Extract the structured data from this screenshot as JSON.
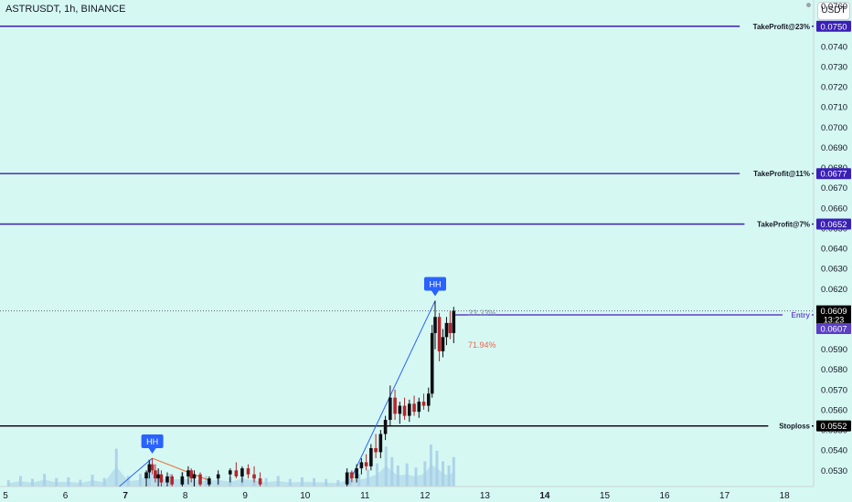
{
  "header": {
    "symbol": "ASTRUSDT, 1h, BINANCE",
    "currency": "USDT"
  },
  "chart_data": {
    "type": "candlestick",
    "symbol": "ASTRUSDT",
    "timeframe": "1h",
    "exchange": "BINANCE",
    "ylim": [
      0.0522,
      0.0763
    ],
    "y_ticks": [
      "0.0760",
      "0.0750",
      "0.0740",
      "0.0730",
      "0.0720",
      "0.0710",
      "0.0700",
      "0.0690",
      "0.0680",
      "0.0670",
      "0.0660",
      "0.0650",
      "0.0640",
      "0.0630",
      "0.0620",
      "0.0610",
      "0.0600",
      "0.0590",
      "0.0580",
      "0.0570",
      "0.0560",
      "0.0550",
      "0.0540",
      "0.0530"
    ],
    "x_ticks": [
      {
        "label": "5",
        "t": 5,
        "bold": false
      },
      {
        "label": "6",
        "t": 6,
        "bold": false
      },
      {
        "label": "7",
        "t": 7,
        "bold": true
      },
      {
        "label": "8",
        "t": 8,
        "bold": false
      },
      {
        "label": "9",
        "t": 9,
        "bold": false
      },
      {
        "label": "10",
        "t": 10,
        "bold": false
      },
      {
        "label": "11",
        "t": 11,
        "bold": false
      },
      {
        "label": "12",
        "t": 12,
        "bold": false
      },
      {
        "label": "13",
        "t": 13,
        "bold": false
      },
      {
        "label": "14",
        "t": 14,
        "bold": true
      },
      {
        "label": "15",
        "t": 15,
        "bold": false
      },
      {
        "label": "16",
        "t": 16,
        "bold": false
      },
      {
        "label": "17",
        "t": 17,
        "bold": false
      },
      {
        "label": "18",
        "t": 18,
        "bold": false
      }
    ],
    "levels": [
      {
        "name": "TakeProfit@23%",
        "price": 0.075,
        "label": "0.0750",
        "color": "#3a1fb6"
      },
      {
        "name": "TakeProfit@11%",
        "price": 0.0677,
        "label": "0.0677",
        "color": "#3a1fb6"
      },
      {
        "name": "TakeProfit@7%",
        "price": 0.0652,
        "label": "0.0652",
        "color": "#3a1fb6"
      },
      {
        "name": "Entry",
        "price": 0.0607,
        "label": "0.0607",
        "color": "#5b3fc6"
      },
      {
        "name": "Stoploss",
        "price": 0.0552,
        "label": "0.0552",
        "color": "#000000"
      }
    ],
    "last_price": {
      "value": 0.0609,
      "label": "0.0609",
      "countdown": "13:23"
    },
    "markers": [
      {
        "text": "HH",
        "t": 7.45,
        "price": 0.0536
      },
      {
        "text": "HH",
        "t": 12.17,
        "price": 0.0614
      }
    ],
    "trend_lines": [
      {
        "from": {
          "t": 6.9,
          "price": 0.0522
        },
        "to": {
          "t": 7.45,
          "price": 0.0536
        },
        "color": "#2962ff"
      },
      {
        "from": {
          "t": 10.8,
          "price": 0.0528
        },
        "to": {
          "t": 12.17,
          "price": 0.0614
        },
        "color": "#2962ff"
      },
      {
        "from": {
          "t": 7.45,
          "price": 0.0536
        },
        "to": {
          "t": 8.4,
          "price": 0.0525
        },
        "color": "#e9692c"
      }
    ],
    "annotations": [
      {
        "text": "33.33%",
        "t": 12.72,
        "price": 0.0608,
        "color": "#8a96a3"
      },
      {
        "text": "71.94%",
        "t": 12.72,
        "price": 0.0592,
        "color": "#f2624c"
      }
    ],
    "candles": [
      {
        "t": 7.35,
        "o": 0.0526,
        "h": 0.053,
        "l": 0.0522,
        "c": 0.0529
      },
      {
        "t": 7.4,
        "o": 0.0529,
        "h": 0.0535,
        "l": 0.0526,
        "c": 0.0533
      },
      {
        "t": 7.45,
        "o": 0.0533,
        "h": 0.0536,
        "l": 0.0528,
        "c": 0.053
      },
      {
        "t": 7.5,
        "o": 0.053,
        "h": 0.0533,
        "l": 0.0524,
        "c": 0.0526
      },
      {
        "t": 7.55,
        "o": 0.0526,
        "h": 0.0531,
        "l": 0.0522,
        "c": 0.0528
      },
      {
        "t": 7.6,
        "o": 0.0528,
        "h": 0.053,
        "l": 0.0522,
        "c": 0.0524
      },
      {
        "t": 7.7,
        "o": 0.0524,
        "h": 0.0529,
        "l": 0.0522,
        "c": 0.0527
      },
      {
        "t": 7.78,
        "o": 0.0527,
        "h": 0.0528,
        "l": 0.0522,
        "c": 0.0523
      },
      {
        "t": 7.95,
        "o": 0.0523,
        "h": 0.0529,
        "l": 0.0522,
        "c": 0.0527
      },
      {
        "t": 8.05,
        "o": 0.0527,
        "h": 0.0532,
        "l": 0.0523,
        "c": 0.053
      },
      {
        "t": 8.1,
        "o": 0.053,
        "h": 0.0531,
        "l": 0.0524,
        "c": 0.0526
      },
      {
        "t": 8.15,
        "o": 0.0526,
        "h": 0.053,
        "l": 0.0522,
        "c": 0.0528
      },
      {
        "t": 8.25,
        "o": 0.0528,
        "h": 0.0529,
        "l": 0.0522,
        "c": 0.0523
      },
      {
        "t": 8.4,
        "o": 0.0523,
        "h": 0.0527,
        "l": 0.0522,
        "c": 0.0526
      },
      {
        "t": 8.55,
        "o": 0.0526,
        "h": 0.053,
        "l": 0.0523,
        "c": 0.0528
      },
      {
        "t": 8.75,
        "o": 0.0528,
        "h": 0.0531,
        "l": 0.0524,
        "c": 0.053
      },
      {
        "t": 8.85,
        "o": 0.053,
        "h": 0.0534,
        "l": 0.0526,
        "c": 0.0527
      },
      {
        "t": 8.95,
        "o": 0.0527,
        "h": 0.0532,
        "l": 0.0524,
        "c": 0.0531
      },
      {
        "t": 9.05,
        "o": 0.0531,
        "h": 0.0533,
        "l": 0.0526,
        "c": 0.0528
      },
      {
        "t": 9.15,
        "o": 0.0528,
        "h": 0.0532,
        "l": 0.0524,
        "c": 0.0526
      },
      {
        "t": 9.25,
        "o": 0.0526,
        "h": 0.0529,
        "l": 0.0522,
        "c": 0.0523
      },
      {
        "t": 10.7,
        "o": 0.0523,
        "h": 0.0531,
        "l": 0.0522,
        "c": 0.0529
      },
      {
        "t": 10.78,
        "o": 0.0529,
        "h": 0.053,
        "l": 0.0524,
        "c": 0.0526
      },
      {
        "t": 10.86,
        "o": 0.0526,
        "h": 0.0533,
        "l": 0.0524,
        "c": 0.0531
      },
      {
        "t": 10.94,
        "o": 0.0531,
        "h": 0.0536,
        "l": 0.0528,
        "c": 0.0534
      },
      {
        "t": 11.02,
        "o": 0.0534,
        "h": 0.0538,
        "l": 0.053,
        "c": 0.0532
      },
      {
        "t": 11.1,
        "o": 0.0532,
        "h": 0.0543,
        "l": 0.053,
        "c": 0.0541
      },
      {
        "t": 11.18,
        "o": 0.0541,
        "h": 0.0548,
        "l": 0.0536,
        "c": 0.0539
      },
      {
        "t": 11.26,
        "o": 0.0539,
        "h": 0.055,
        "l": 0.0536,
        "c": 0.0548
      },
      {
        "t": 11.34,
        "o": 0.0548,
        "h": 0.0557,
        "l": 0.0545,
        "c": 0.0555
      },
      {
        "t": 11.42,
        "o": 0.0555,
        "h": 0.0572,
        "l": 0.0552,
        "c": 0.0566
      },
      {
        "t": 11.5,
        "o": 0.0566,
        "h": 0.057,
        "l": 0.0555,
        "c": 0.0558
      },
      {
        "t": 11.58,
        "o": 0.0558,
        "h": 0.0564,
        "l": 0.0553,
        "c": 0.0562
      },
      {
        "t": 11.66,
        "o": 0.0562,
        "h": 0.0566,
        "l": 0.0555,
        "c": 0.0557
      },
      {
        "t": 11.74,
        "o": 0.0557,
        "h": 0.0565,
        "l": 0.0554,
        "c": 0.0563
      },
      {
        "t": 11.82,
        "o": 0.0563,
        "h": 0.0567,
        "l": 0.0557,
        "c": 0.0559
      },
      {
        "t": 11.9,
        "o": 0.0559,
        "h": 0.0566,
        "l": 0.0556,
        "c": 0.0564
      },
      {
        "t": 11.98,
        "o": 0.0564,
        "h": 0.0568,
        "l": 0.056,
        "c": 0.0562
      },
      {
        "t": 12.06,
        "o": 0.0562,
        "h": 0.0571,
        "l": 0.0559,
        "c": 0.0568
      },
      {
        "t": 12.12,
        "o": 0.0568,
        "h": 0.0602,
        "l": 0.0566,
        "c": 0.0598
      },
      {
        "t": 12.17,
        "o": 0.0598,
        "h": 0.0614,
        "l": 0.059,
        "c": 0.0606
      },
      {
        "t": 12.24,
        "o": 0.0606,
        "h": 0.0608,
        "l": 0.0584,
        "c": 0.0589
      },
      {
        "t": 12.3,
        "o": 0.0589,
        "h": 0.06,
        "l": 0.0586,
        "c": 0.0596
      },
      {
        "t": 12.36,
        "o": 0.0596,
        "h": 0.0606,
        "l": 0.0592,
        "c": 0.0603
      },
      {
        "t": 12.42,
        "o": 0.0603,
        "h": 0.0609,
        "l": 0.0595,
        "c": 0.0598
      },
      {
        "t": 12.48,
        "o": 0.0598,
        "h": 0.0611,
        "l": 0.0593,
        "c": 0.0609
      }
    ],
    "volume": [
      {
        "t": 5.05,
        "v": 0.15
      },
      {
        "t": 5.25,
        "v": 0.25
      },
      {
        "t": 5.45,
        "v": 0.18
      },
      {
        "t": 5.65,
        "v": 0.3
      },
      {
        "t": 5.85,
        "v": 0.2
      },
      {
        "t": 6.05,
        "v": 0.22
      },
      {
        "t": 6.25,
        "v": 0.16
      },
      {
        "t": 6.45,
        "v": 0.28
      },
      {
        "t": 6.65,
        "v": 0.2
      },
      {
        "t": 6.85,
        "v": 0.9
      },
      {
        "t": 7.05,
        "v": 0.25
      },
      {
        "t": 7.25,
        "v": 0.3
      },
      {
        "t": 7.4,
        "v": 0.65
      },
      {
        "t": 7.55,
        "v": 0.4
      },
      {
        "t": 7.75,
        "v": 0.3
      },
      {
        "t": 7.95,
        "v": 0.35
      },
      {
        "t": 8.15,
        "v": 0.3
      },
      {
        "t": 8.35,
        "v": 0.25
      },
      {
        "t": 8.55,
        "v": 0.3
      },
      {
        "t": 8.75,
        "v": 0.22
      },
      {
        "t": 8.95,
        "v": 0.35
      },
      {
        "t": 9.15,
        "v": 0.28
      },
      {
        "t": 9.35,
        "v": 0.2
      },
      {
        "t": 9.55,
        "v": 0.25
      },
      {
        "t": 9.75,
        "v": 0.18
      },
      {
        "t": 9.95,
        "v": 0.22
      },
      {
        "t": 10.15,
        "v": 0.2
      },
      {
        "t": 10.35,
        "v": 0.18
      },
      {
        "t": 10.55,
        "v": 0.15
      },
      {
        "t": 10.75,
        "v": 0.35
      },
      {
        "t": 10.9,
        "v": 0.3
      },
      {
        "t": 11.05,
        "v": 0.4
      },
      {
        "t": 11.2,
        "v": 0.55
      },
      {
        "t": 11.35,
        "v": 0.95
      },
      {
        "t": 11.45,
        "v": 0.7
      },
      {
        "t": 11.55,
        "v": 0.5
      },
      {
        "t": 11.7,
        "v": 0.55
      },
      {
        "t": 11.85,
        "v": 0.45
      },
      {
        "t": 12.0,
        "v": 0.6
      },
      {
        "t": 12.1,
        "v": 1.0
      },
      {
        "t": 12.2,
        "v": 0.85
      },
      {
        "t": 12.3,
        "v": 0.6
      },
      {
        "t": 12.4,
        "v": 0.5
      },
      {
        "t": 12.48,
        "v": 0.7
      }
    ]
  }
}
